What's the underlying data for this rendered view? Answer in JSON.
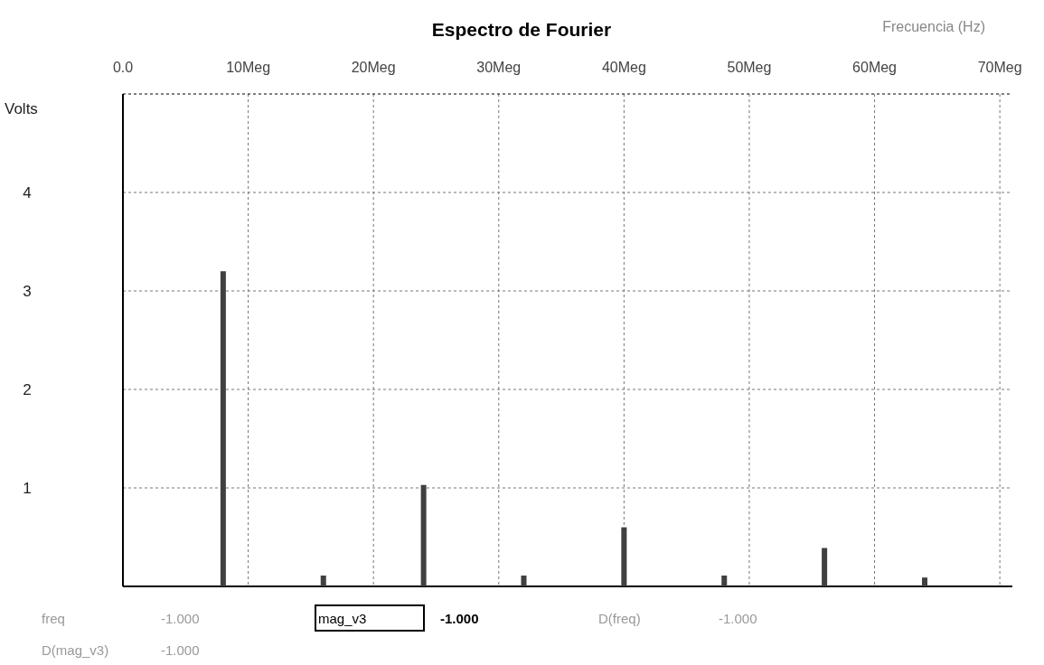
{
  "chart_data": {
    "type": "bar",
    "title": "Espectro de Fourier",
    "xlabel": "Frecuencia  (Hz)",
    "ylabel": "Volts",
    "x": [
      8,
      16,
      24,
      32,
      40,
      48,
      56,
      64
    ],
    "values": [
      3.2,
      0.11,
      1.03,
      0.11,
      0.6,
      0.11,
      0.39,
      0.09
    ],
    "color": "#404040",
    "xlim": [
      0,
      71
    ],
    "xticks": [
      {
        "value": 0,
        "label": "0.0"
      },
      {
        "value": 10,
        "label": "10Meg"
      },
      {
        "value": 20,
        "label": "20Meg"
      },
      {
        "value": 30,
        "label": "30Meg"
      },
      {
        "value": 40,
        "label": "40Meg"
      },
      {
        "value": 50,
        "label": "50Meg"
      },
      {
        "value": 60,
        "label": "60Meg"
      },
      {
        "value": 70,
        "label": "70Meg"
      }
    ],
    "ylim": [
      0,
      5
    ],
    "yticks": [
      1,
      2,
      3,
      4
    ],
    "grid": true,
    "annotations": [
      "freq",
      "-1.000",
      "mag_v3",
      "-1.000",
      "D(freq)",
      "-1.000",
      "D(mag_v3)",
      "-1.000"
    ]
  }
}
